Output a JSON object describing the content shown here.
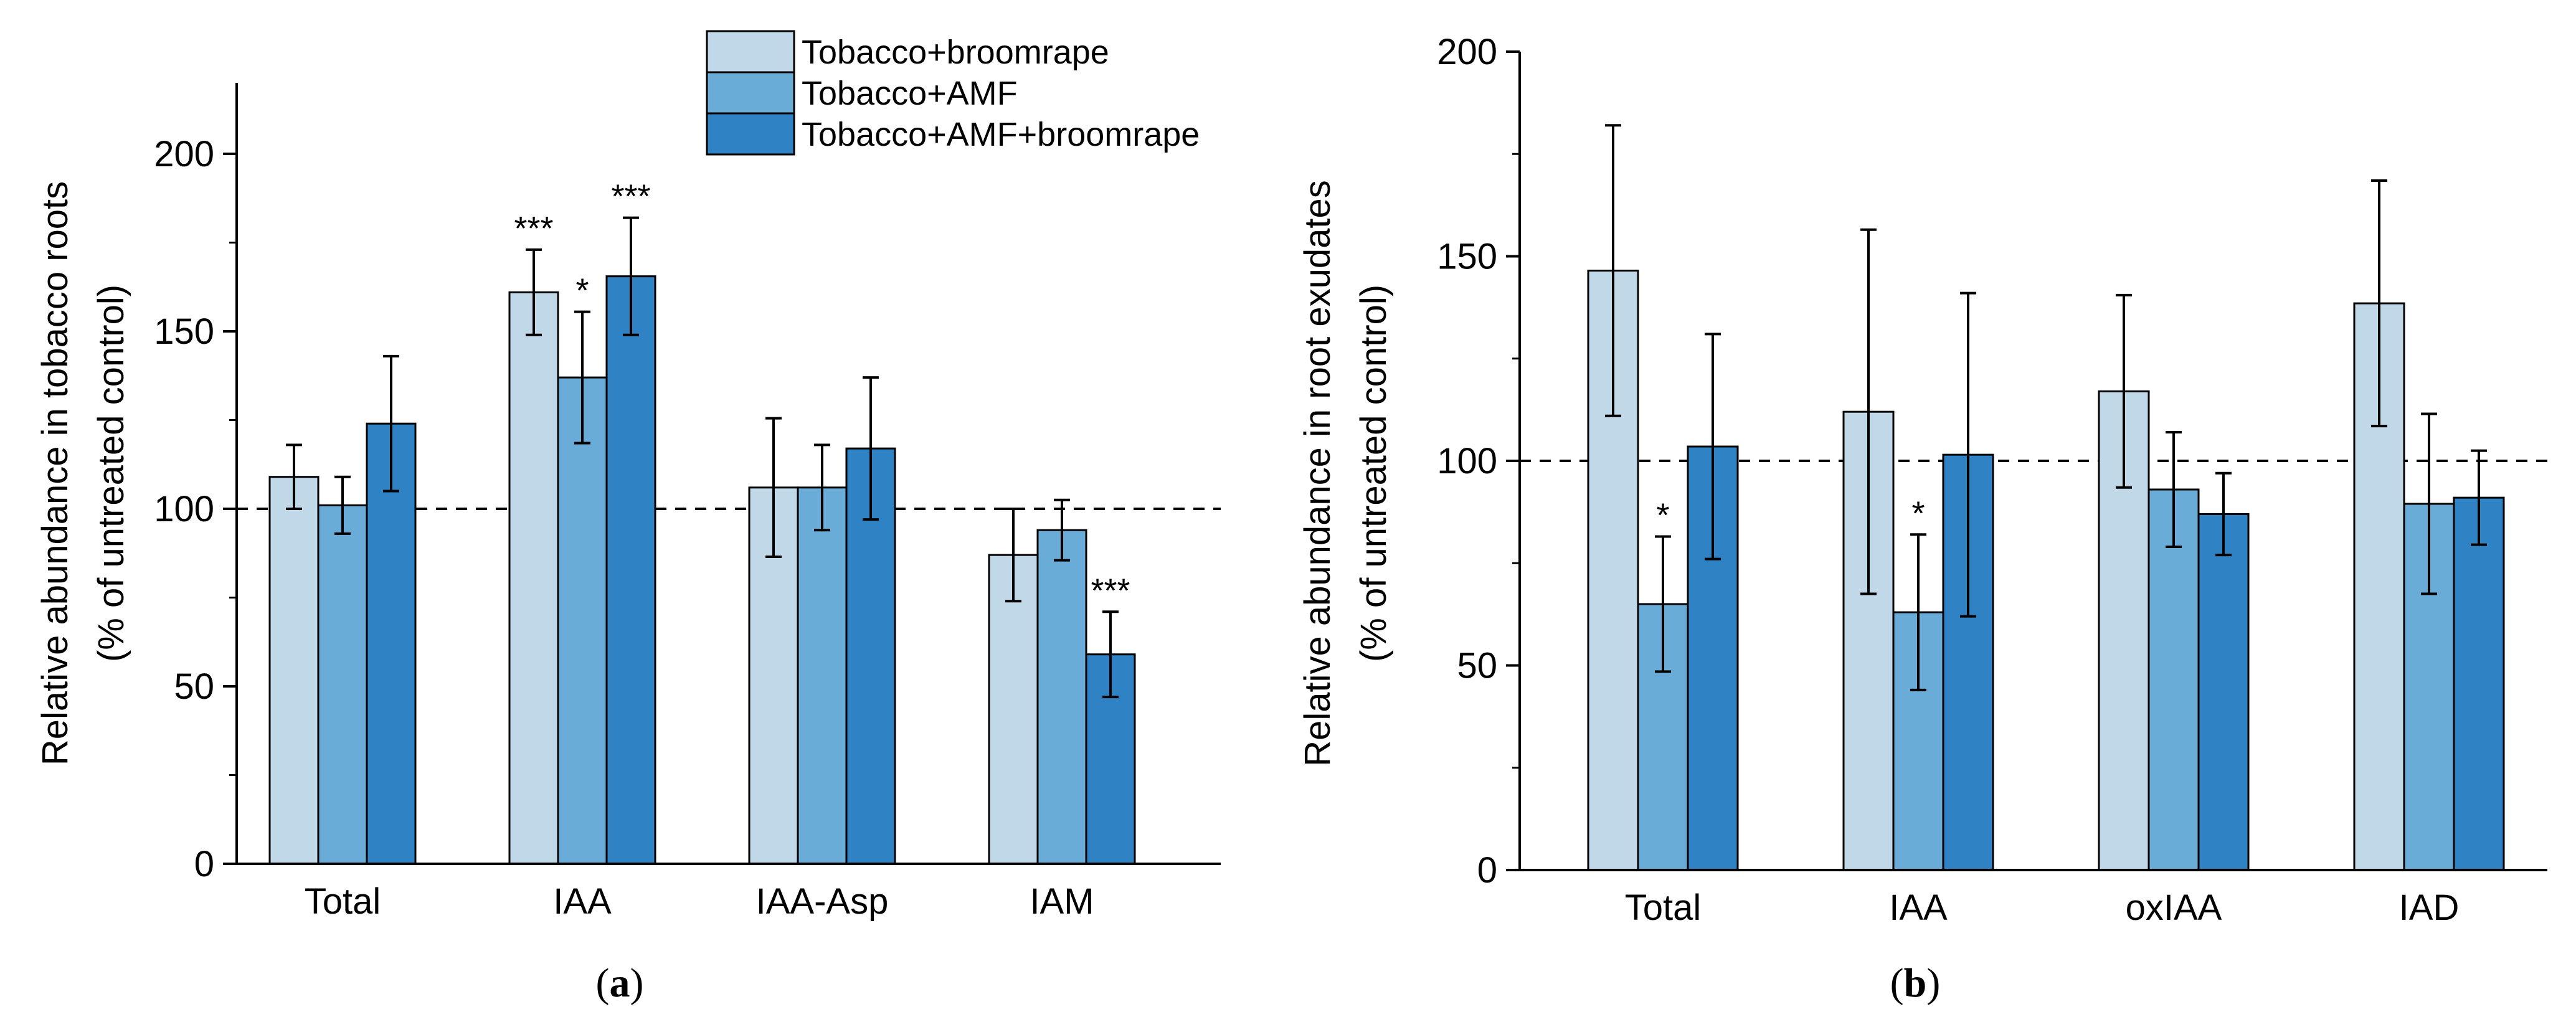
{
  "chart_data": [
    {
      "type": "bar",
      "panel_label": "a",
      "ylabel": "Relative abundance in tobacco roots",
      "ylabel_sub": "(% of untreated control)",
      "ylim": [
        0,
        220
      ],
      "yticks": [
        0,
        50,
        100,
        150,
        200
      ],
      "yminor": [
        25,
        75,
        125,
        175
      ],
      "reference_line": 100,
      "categories": [
        "Total",
        "IAA",
        "IAA-Asp",
        "IAM"
      ],
      "series": [
        {
          "name": "Tobacco+broomrape",
          "color": "#c0d8e8",
          "values": [
            109,
            161,
            106,
            87
          ],
          "errors": [
            9,
            12,
            19.5,
            13
          ],
          "significance": [
            "",
            "***",
            "",
            ""
          ]
        },
        {
          "name": "Tobacco+AMF",
          "color": "#6aacd8",
          "values": [
            101,
            137,
            106,
            94
          ],
          "errors": [
            8,
            18.5,
            12,
            8.5
          ],
          "significance": [
            "",
            "*",
            "",
            ""
          ]
        },
        {
          "name": "Tobacco+AMF+broomrape",
          "color": "#2f82c4",
          "values": [
            124,
            165.5,
            117,
            59
          ],
          "errors": [
            19,
            16.5,
            20,
            12
          ],
          "significance": [
            "",
            "***",
            "",
            "***"
          ]
        }
      ],
      "legend": {
        "placement": "top-center"
      }
    },
    {
      "type": "bar",
      "panel_label": "b",
      "ylabel": "Relative abundance in root exudates",
      "ylabel_sub": "(% of untreated control)",
      "ylim": [
        0,
        200
      ],
      "yticks": [
        0,
        50,
        100,
        150,
        200
      ],
      "yminor": [
        25,
        75,
        125,
        175
      ],
      "reference_line": 100,
      "categories": [
        "Total",
        "IAA",
        "oxIAA",
        "IAD"
      ],
      "series": [
        {
          "name": "Tobacco+broomrape",
          "color": "#c0d8e8",
          "values": [
            146.5,
            112,
            117,
            138.5
          ],
          "errors": [
            35.5,
            44.5,
            23.5,
            30
          ],
          "significance": [
            "",
            "",
            "",
            ""
          ]
        },
        {
          "name": "Tobacco+AMF",
          "color": "#6aacd8",
          "values": [
            65,
            63,
            93,
            89.5
          ],
          "errors": [
            16.5,
            19,
            14,
            22
          ],
          "significance": [
            "*",
            "*",
            "",
            ""
          ]
        },
        {
          "name": "Tobacco+AMF+broomrape",
          "color": "#2f82c4",
          "values": [
            103.5,
            101.5,
            87,
            91
          ],
          "errors": [
            27.5,
            39.5,
            10,
            11.5
          ],
          "significance": [
            "",
            "",
            "",
            ""
          ]
        }
      ]
    }
  ]
}
